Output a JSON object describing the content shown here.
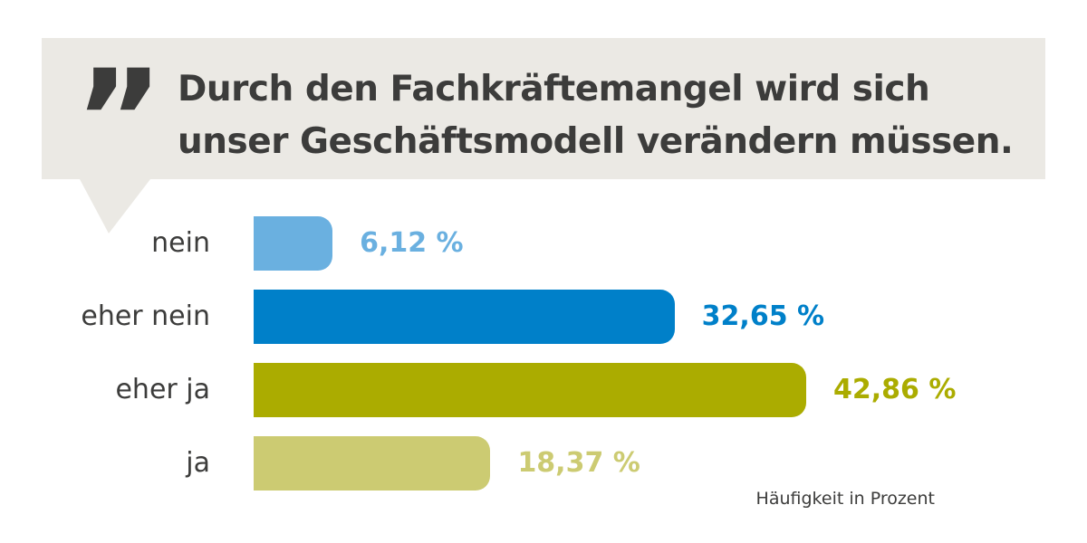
{
  "title": "Durch den Fachkräftemangel wird sich unser Geschäftsmodell verändern müssen.",
  "quote_mark": "”",
  "note": "Häufigkeit in Prozent",
  "colors": {
    "bubble": "#ebe9e4",
    "text": "#3c3c3b"
  },
  "chart_data": {
    "type": "bar",
    "orientation": "horizontal",
    "title": "Durch den Fachkräftemangel wird sich unser Geschäftsmodell verändern müssen.",
    "xlabel": "Häufigkeit in Prozent",
    "ylabel": "",
    "xlim": [
      0,
      50
    ],
    "grid": false,
    "categories": [
      "nein",
      "eher nein",
      "eher ja",
      "ja"
    ],
    "values": [
      6.12,
      32.65,
      42.86,
      18.37
    ],
    "value_labels": [
      "6,12 %",
      "32,65 %",
      "42,86 %",
      "18,37 %"
    ],
    "colors": [
      "#6ab0e0",
      "#0080c9",
      "#abac00",
      "#cccb72"
    ]
  }
}
